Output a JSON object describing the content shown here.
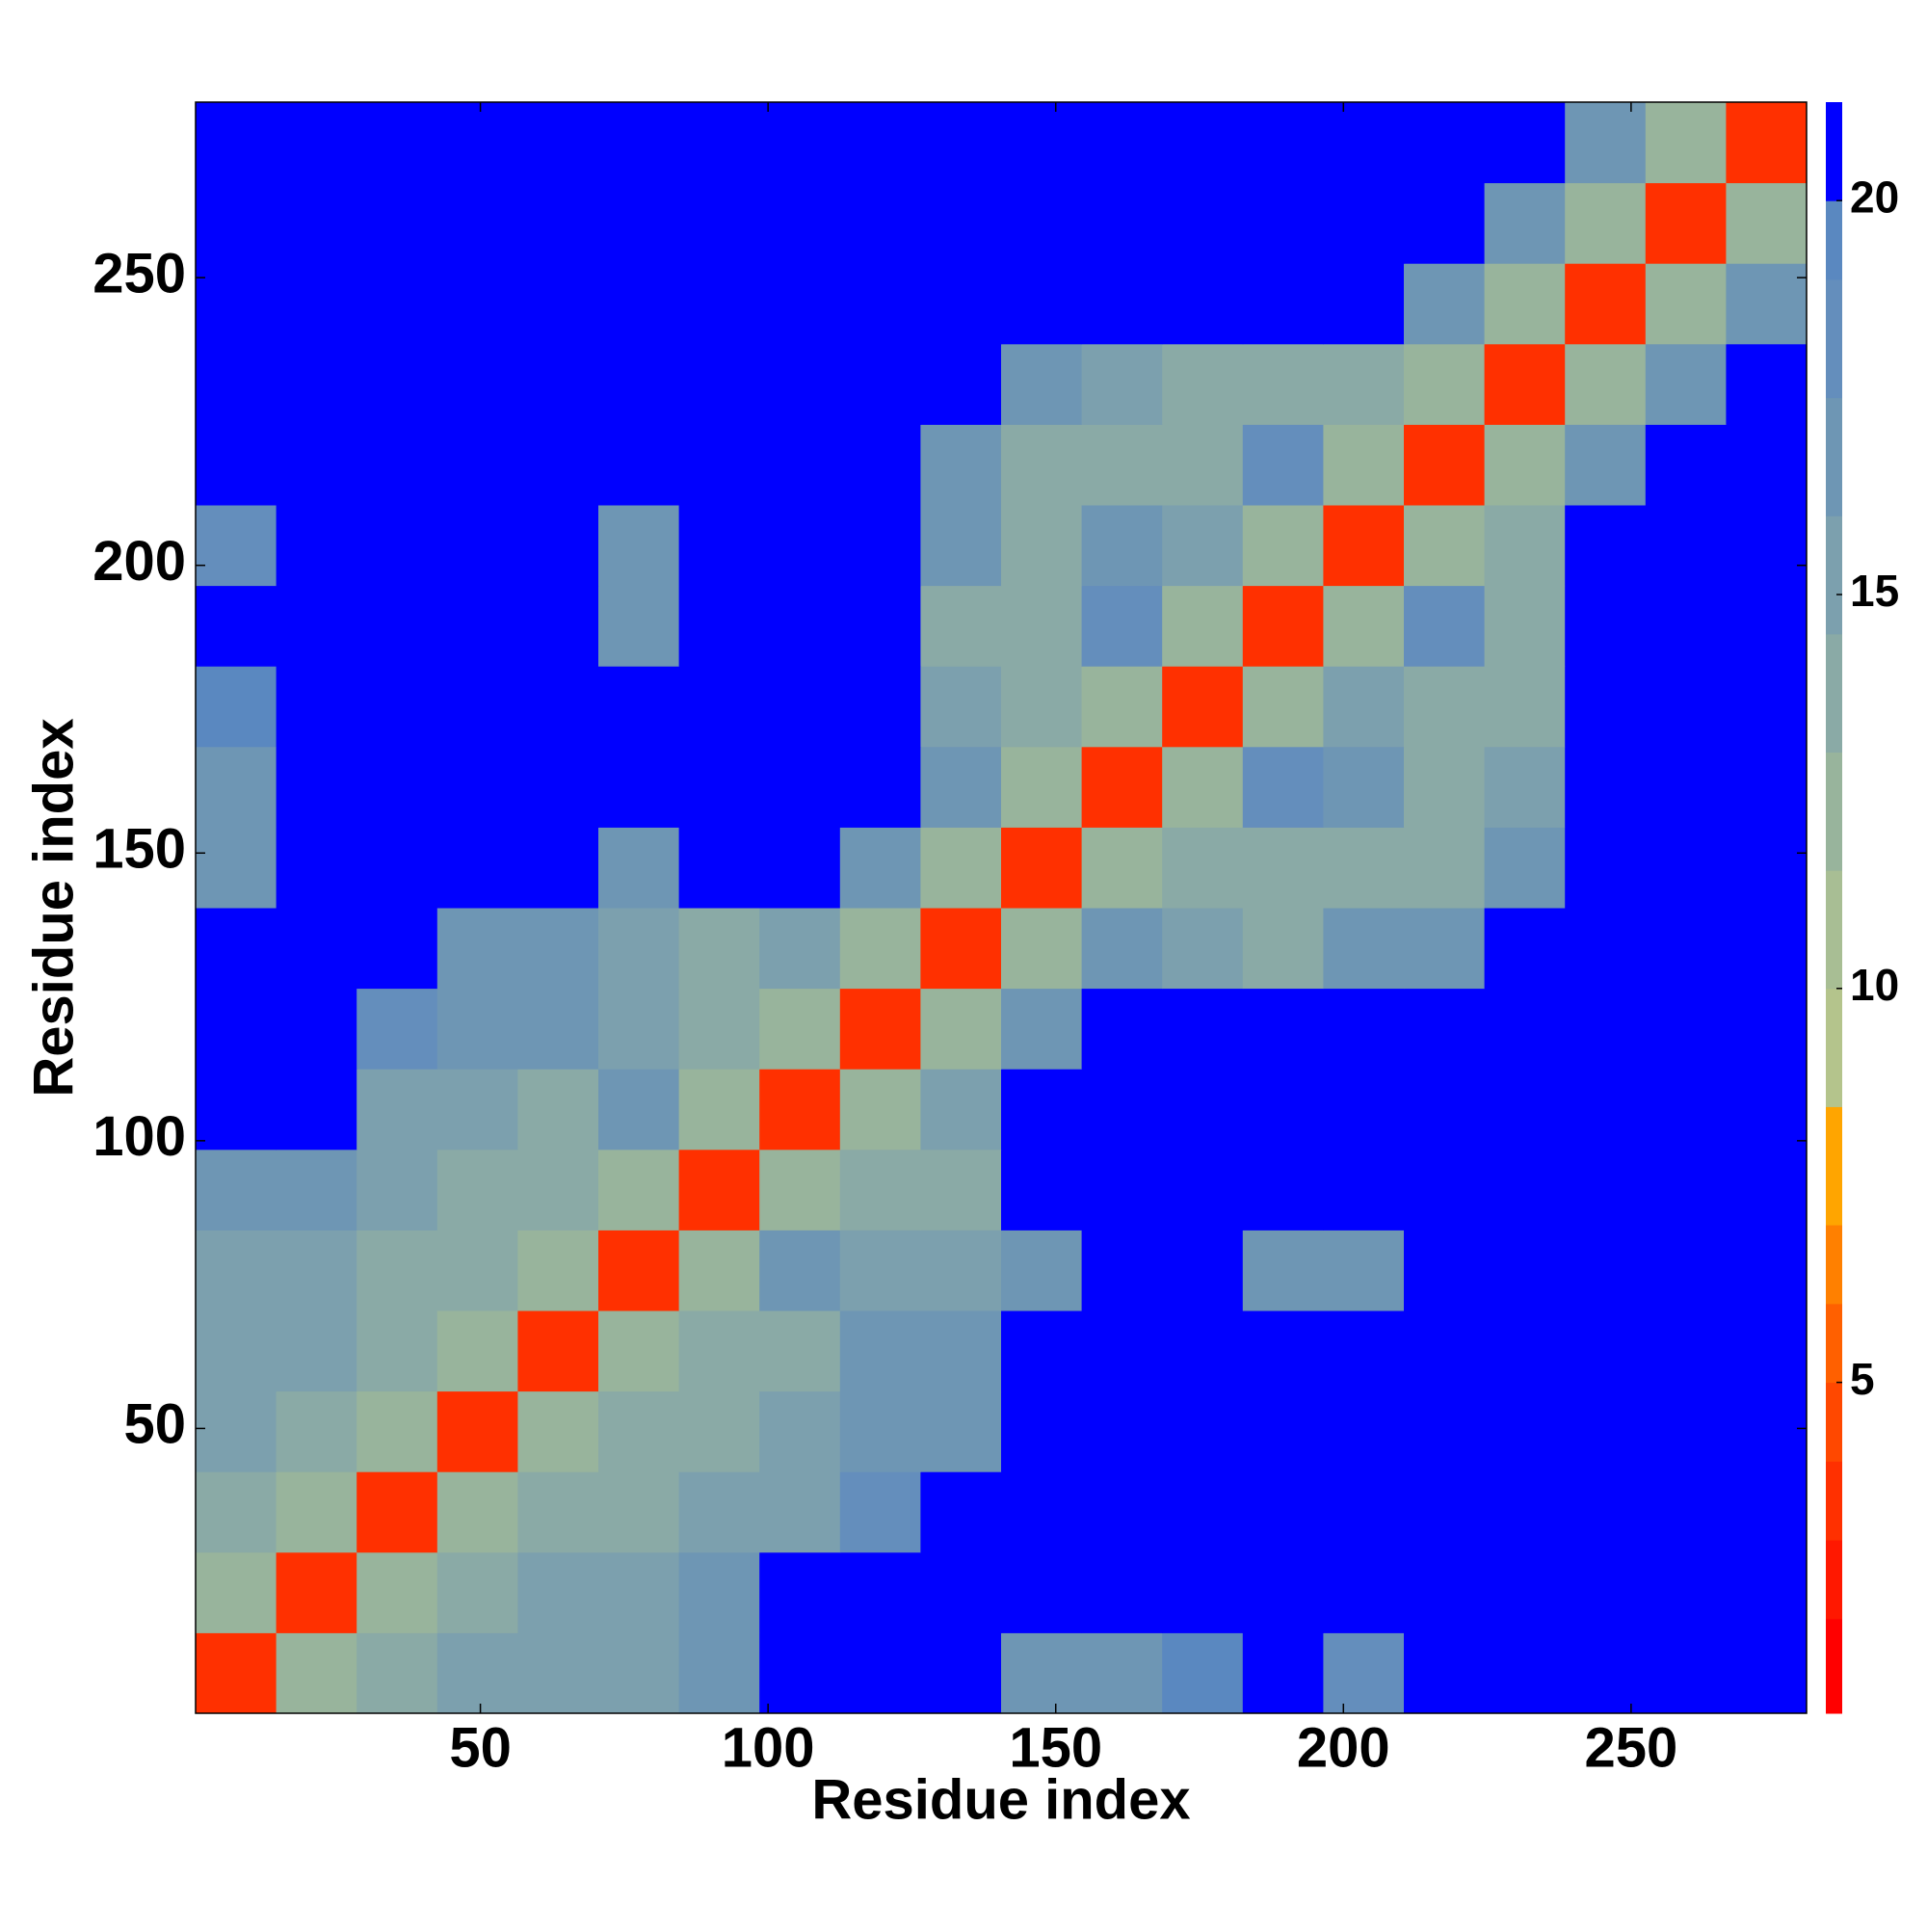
{
  "chart_data": {
    "type": "heatmap",
    "xlabel": "Residue index",
    "ylabel": "Residue index",
    "xlim": [
      0.5,
      280.5
    ],
    "ylim": [
      0.5,
      280.5
    ],
    "xticks": [
      50,
      100,
      150,
      200,
      250
    ],
    "yticks": [
      50,
      100,
      150,
      200,
      250
    ],
    "xbins": [
      0.5,
      14.5,
      28.5,
      42.5,
      56.5,
      70.5,
      84.5,
      98.5,
      112.5,
      126.5,
      140.5,
      154.5,
      168.5,
      182.5,
      196.5,
      210.5,
      224.5,
      238.5,
      252.5,
      266.5,
      280.5
    ],
    "ybins": [
      0.5,
      14.5,
      28.5,
      42.5,
      56.5,
      70.5,
      84.5,
      98.5,
      112.5,
      126.5,
      140.5,
      154.5,
      168.5,
      182.5,
      196.5,
      210.5,
      224.5,
      238.5,
      252.5,
      266.5,
      280.5
    ],
    "z": [
      [
        3,
        12,
        14,
        15,
        15,
        15,
        17,
        22,
        22,
        22,
        16,
        17,
        19,
        22,
        18,
        22,
        22,
        22,
        22,
        22
      ],
      [
        12,
        3,
        12,
        14,
        15,
        15,
        16,
        22,
        22,
        22,
        22,
        22,
        22,
        22,
        22,
        22,
        22,
        22,
        22,
        22
      ],
      [
        14,
        12,
        3,
        12,
        13,
        14,
        15,
        15,
        18,
        22,
        22,
        22,
        22,
        22,
        22,
        22,
        22,
        22,
        22,
        22
      ],
      [
        15,
        14,
        12,
        3,
        12,
        13,
        14,
        15,
        16,
        17,
        22,
        22,
        22,
        22,
        22,
        22,
        22,
        22,
        22,
        22
      ],
      [
        15,
        15,
        13,
        12,
        3,
        12,
        14,
        14,
        16,
        16,
        22,
        22,
        22,
        22,
        22,
        22,
        22,
        22,
        22,
        22
      ],
      [
        15,
        15,
        14,
        13,
        12,
        3,
        12,
        16,
        15,
        15,
        17,
        22,
        22,
        17,
        17,
        22,
        22,
        22,
        22,
        22
      ],
      [
        17,
        16,
        15,
        14,
        14,
        12,
        3,
        12,
        14,
        14,
        22,
        22,
        22,
        22,
        22,
        22,
        22,
        22,
        22,
        22
      ],
      [
        22,
        22,
        15,
        15,
        14,
        16,
        12,
        3,
        12,
        15,
        22,
        22,
        22,
        22,
        22,
        22,
        22,
        22,
        22,
        22
      ],
      [
        22,
        22,
        18,
        16,
        16,
        15,
        14,
        12,
        3,
        12,
        16,
        22,
        22,
        22,
        22,
        22,
        22,
        22,
        22,
        22
      ],
      [
        22,
        22,
        22,
        17,
        16,
        15,
        14,
        15,
        12,
        3,
        12,
        16,
        15,
        14,
        16,
        17,
        22,
        22,
        22,
        22
      ],
      [
        16,
        22,
        22,
        22,
        22,
        17,
        22,
        22,
        16,
        12,
        3,
        12,
        13,
        13,
        13,
        14,
        17,
        22,
        22,
        22
      ],
      [
        17,
        22,
        22,
        22,
        22,
        22,
        22,
        22,
        22,
        16,
        12,
        3,
        12,
        18,
        16,
        13,
        15,
        22,
        22,
        22
      ],
      [
        19,
        22,
        22,
        22,
        22,
        22,
        22,
        22,
        22,
        15,
        13,
        12,
        3,
        12,
        15,
        14,
        14,
        22,
        22,
        22
      ],
      [
        22,
        22,
        22,
        22,
        22,
        17,
        22,
        22,
        22,
        14,
        13,
        18,
        12,
        3,
        12,
        18,
        14,
        22,
        22,
        22
      ],
      [
        18,
        22,
        22,
        22,
        22,
        17,
        22,
        22,
        22,
        16,
        13,
        16,
        15,
        12,
        3,
        12,
        14,
        22,
        22,
        22
      ],
      [
        22,
        22,
        22,
        22,
        22,
        22,
        22,
        22,
        22,
        17,
        14,
        13,
        14,
        18,
        12,
        3,
        12,
        16,
        22,
        22
      ],
      [
        22,
        22,
        22,
        22,
        22,
        22,
        22,
        22,
        22,
        22,
        17,
        15,
        14,
        14,
        14,
        12,
        3,
        12,
        16,
        22
      ],
      [
        22,
        22,
        22,
        22,
        22,
        22,
        22,
        22,
        22,
        22,
        22,
        22,
        22,
        22,
        22,
        16,
        12,
        3,
        12,
        16
      ],
      [
        22,
        22,
        22,
        22,
        22,
        22,
        22,
        22,
        22,
        22,
        22,
        22,
        22,
        22,
        22,
        22,
        16,
        12,
        3,
        12
      ],
      [
        22,
        22,
        22,
        22,
        22,
        22,
        22,
        22,
        22,
        22,
        22,
        22,
        22,
        22,
        22,
        22,
        22,
        16,
        12,
        3
      ]
    ],
    "colorbar": {
      "lim": [
        0.8,
        21.25
      ],
      "ticks": [
        5,
        10,
        15,
        20
      ],
      "levels": [
        0.8,
        2,
        3,
        4,
        5,
        6,
        7,
        8.5,
        10,
        11.5,
        13,
        14.5,
        16,
        17.5,
        19,
        20,
        21.25
      ],
      "colors": [
        "#ff0000",
        "#ff1800",
        "#ff3000",
        "#ff4800",
        "#ff6000",
        "#ff8000",
        "#ffa500",
        "#b4c48c",
        "#a8be94",
        "#98b49c",
        "#8aaaa6",
        "#7ca0ae",
        "#6e96b4",
        "#648ebc",
        "#5a88c0",
        "#0000ff"
      ]
    }
  }
}
